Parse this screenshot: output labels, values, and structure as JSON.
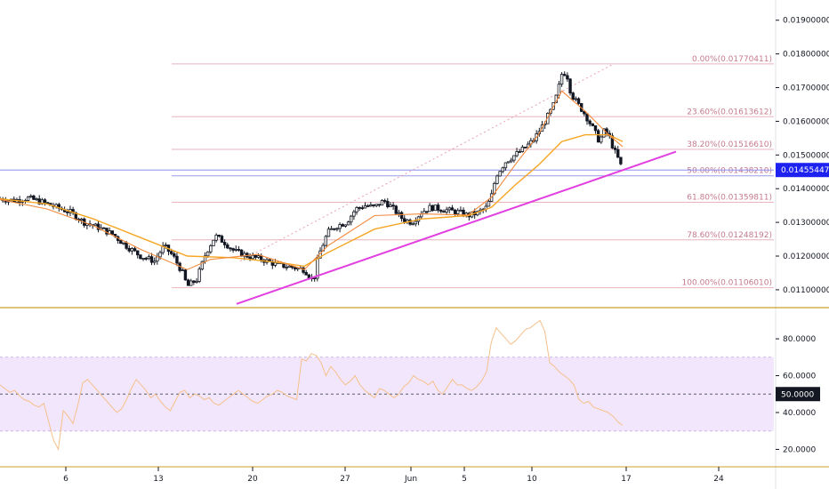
{
  "chart_data": [
    {
      "type": "candlestick",
      "panel": "price",
      "y_ticks": [
        "0.01100000",
        "0.01200000",
        "0.01300000",
        "0.01400000",
        "0.01500000",
        "0.01600000",
        "0.01700000",
        "0.01800000",
        "0.01900000"
      ],
      "y_tick_values": [
        0.011,
        0.012,
        0.013,
        0.014,
        0.015,
        0.016,
        0.017,
        0.018,
        0.019
      ],
      "ylim": [
        0.01047,
        0.0196
      ],
      "current_price": "0.01455447",
      "current_price_value": 0.01455447,
      "fib_levels": [
        {
          "label": "0.00%(0.01770411)",
          "value": 0.01770411
        },
        {
          "label": "23.60%(0.01613612)",
          "value": 0.01613612
        },
        {
          "label": "38.20%(0.01516610)",
          "value": 0.0151661
        },
        {
          "label": "50.00%(0.01438210)",
          "value": 0.0143821
        },
        {
          "label": "61.80%(0.01359811)",
          "value": 0.01359811
        },
        {
          "label": "78.60%(0.01248192)",
          "value": 0.01248192
        },
        {
          "label": "100.00%(0.01106010)",
          "value": 0.0110601
        }
      ],
      "x_ticks": [
        "6",
        "13",
        "20",
        "27",
        "Jun",
        "5",
        "10",
        "17",
        "24"
      ],
      "close_path": [
        [
          0,
          0.0137
        ],
        [
          3,
          0.01365
        ],
        [
          6,
          0.01372
        ],
        [
          9,
          0.0136
        ],
        [
          12,
          0.01345
        ],
        [
          15,
          0.0133
        ],
        [
          18,
          0.013
        ],
        [
          21,
          0.01285
        ],
        [
          24,
          0.01265
        ],
        [
          27,
          0.0123
        ],
        [
          30,
          0.012
        ],
        [
          33,
          0.01185
        ],
        [
          35,
          0.0123
        ],
        [
          37,
          0.012
        ],
        [
          39,
          0.0115
        ],
        [
          40,
          0.0111
        ],
        [
          42,
          0.0113
        ],
        [
          44,
          0.0121
        ],
        [
          46,
          0.0126
        ],
        [
          48,
          0.0124
        ],
        [
          50,
          0.01215
        ],
        [
          53,
          0.012
        ],
        [
          56,
          0.0119
        ],
        [
          59,
          0.01175
        ],
        [
          62,
          0.01168
        ],
        [
          65,
          0.0116
        ],
        [
          67,
          0.01125
        ],
        [
          68,
          0.012
        ],
        [
          70,
          0.0127
        ],
        [
          72,
          0.0129
        ],
        [
          74,
          0.013
        ],
        [
          76,
          0.0134
        ],
        [
          78,
          0.0135
        ],
        [
          80,
          0.01345
        ],
        [
          82,
          0.01365
        ],
        [
          84,
          0.0134
        ],
        [
          86,
          0.0131
        ],
        [
          88,
          0.013
        ],
        [
          90,
          0.0133
        ],
        [
          92,
          0.01345
        ],
        [
          94,
          0.0134
        ],
        [
          96,
          0.01335
        ],
        [
          98,
          0.0133
        ],
        [
          100,
          0.0132
        ],
        [
          102,
          0.01328
        ],
        [
          104,
          0.01345
        ],
        [
          105,
          0.0138
        ],
        [
          106,
          0.0144
        ],
        [
          108,
          0.0148
        ],
        [
          110,
          0.015
        ],
        [
          112,
          0.0152
        ],
        [
          114,
          0.01545
        ],
        [
          116,
          0.0159
        ],
        [
          118,
          0.0164
        ],
        [
          119,
          0.0168
        ],
        [
          120,
          0.0174
        ],
        [
          121,
          0.01745
        ],
        [
          122,
          0.0168
        ],
        [
          123,
          0.0166
        ],
        [
          125,
          0.0162
        ],
        [
          127,
          0.0157
        ],
        [
          128,
          0.0154
        ],
        [
          129,
          0.0157
        ],
        [
          130,
          0.0156
        ],
        [
          131,
          0.0152
        ],
        [
          132,
          0.0149
        ],
        [
          133,
          0.01455
        ]
      ],
      "ema_fast_path": [
        [
          0,
          0.01368
        ],
        [
          10,
          0.0134
        ],
        [
          20,
          0.0129
        ],
        [
          30,
          0.0122
        ],
        [
          40,
          0.0116
        ],
        [
          45,
          0.0119
        ],
        [
          55,
          0.01205
        ],
        [
          65,
          0.0116
        ],
        [
          70,
          0.0123
        ],
        [
          80,
          0.0132
        ],
        [
          90,
          0.01325
        ],
        [
          100,
          0.01322
        ],
        [
          105,
          0.01375
        ],
        [
          110,
          0.0147
        ],
        [
          115,
          0.0156
        ],
        [
          120,
          0.0169
        ],
        [
          125,
          0.0163
        ],
        [
          130,
          0.0156
        ],
        [
          133,
          0.01525
        ]
      ],
      "ema_slow_path": [
        [
          0,
          0.0137
        ],
        [
          10,
          0.01355
        ],
        [
          20,
          0.0131
        ],
        [
          30,
          0.01255
        ],
        [
          40,
          0.012
        ],
        [
          50,
          0.01195
        ],
        [
          60,
          0.0118
        ],
        [
          65,
          0.0117
        ],
        [
          70,
          0.0121
        ],
        [
          80,
          0.0128
        ],
        [
          90,
          0.0131
        ],
        [
          100,
          0.0132
        ],
        [
          105,
          0.01345
        ],
        [
          110,
          0.0141
        ],
        [
          115,
          0.0147
        ],
        [
          120,
          0.0154
        ],
        [
          125,
          0.0156
        ],
        [
          130,
          0.0156
        ],
        [
          133,
          0.0154
        ]
      ],
      "trendline": [
        [
          0.01058,
          0.0
        ],
        [
          0.0151,
          1.0
        ]
      ],
      "fib_anchor_line": [
        [
          0.0110601,
          0.0
        ],
        [
          0.01770411,
          1.0
        ]
      ]
    },
    {
      "type": "line",
      "panel": "rsi",
      "series": [
        {
          "values": [
            55,
            53,
            51,
            52,
            49,
            47,
            46,
            44,
            43,
            45,
            35,
            25,
            20,
            41,
            38,
            34,
            44,
            56,
            58,
            55,
            52,
            49,
            46,
            43,
            40,
            42,
            47,
            53,
            58,
            55,
            52,
            48,
            50,
            46,
            43,
            41,
            46,
            51,
            52,
            48,
            50,
            49,
            47,
            48,
            45,
            44,
            46,
            48,
            50,
            52,
            50,
            48,
            46,
            45,
            47,
            49,
            50,
            52,
            51,
            49,
            48,
            47,
            69,
            68,
            72,
            71,
            67,
            60,
            65,
            62,
            58,
            55,
            57,
            60,
            55,
            52,
            50,
            48,
            53,
            52,
            50,
            48,
            50,
            54,
            56,
            60,
            58,
            57,
            55,
            57,
            52,
            50,
            54,
            58,
            55,
            55,
            53,
            52,
            54,
            57,
            62,
            78,
            86,
            83,
            80,
            77,
            79,
            82,
            85,
            86,
            88,
            90,
            84,
            67,
            65,
            62,
            60,
            58,
            55,
            47,
            45,
            46,
            43,
            42,
            41,
            40,
            38,
            35,
            33
          ]
        }
      ],
      "y_ticks": [
        "20.0000",
        "40.0000",
        "60.0000",
        "80.0000"
      ],
      "y_tick_values": [
        20,
        40,
        60,
        80
      ],
      "band": [
        30,
        70
      ],
      "midline": "50.0000",
      "midline_value": 50,
      "ylim": [
        12,
        95
      ]
    }
  ]
}
